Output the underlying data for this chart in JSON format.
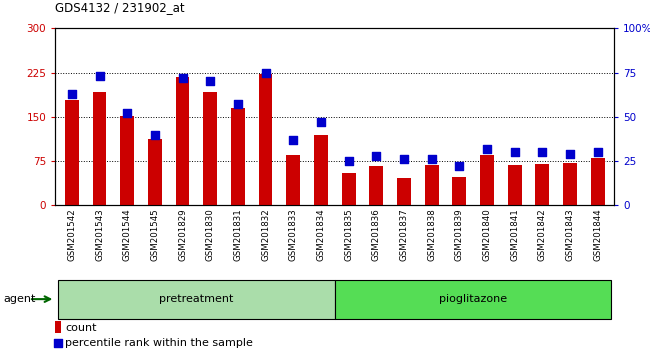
{
  "title": "GDS4132 / 231902_at",
  "categories": [
    "GSM201542",
    "GSM201543",
    "GSM201544",
    "GSM201545",
    "GSM201829",
    "GSM201830",
    "GSM201831",
    "GSM201832",
    "GSM201833",
    "GSM201834",
    "GSM201835",
    "GSM201836",
    "GSM201837",
    "GSM201838",
    "GSM201839",
    "GSM201840",
    "GSM201841",
    "GSM201842",
    "GSM201843",
    "GSM201844"
  ],
  "count_values": [
    178,
    192,
    152,
    112,
    218,
    192,
    165,
    222,
    85,
    120,
    55,
    67,
    47,
    68,
    48,
    85,
    68,
    70,
    72,
    80
  ],
  "percentile_values": [
    63,
    73,
    52,
    40,
    72,
    70,
    57,
    75,
    37,
    47,
    25,
    28,
    26,
    26,
    22,
    32,
    30,
    30,
    29,
    30
  ],
  "bar_color": "#cc0000",
  "dot_color": "#0000cc",
  "ylim_left": [
    0,
    300
  ],
  "ylim_right": [
    0,
    100
  ],
  "yticks_left": [
    0,
    75,
    150,
    225,
    300
  ],
  "yticks_right": [
    0,
    25,
    50,
    75,
    100
  ],
  "ytick_labels_right": [
    "0",
    "25",
    "50",
    "75",
    "100%"
  ],
  "grid_values": [
    75,
    150,
    225
  ],
  "pretreatment_indices": [
    0,
    9
  ],
  "pioglitazone_indices": [
    10,
    19
  ],
  "pretreatment_label": "pretreatment",
  "pioglitazone_label": "pioglitazone",
  "agent_label": "agent",
  "legend_count_label": "count",
  "legend_percentile_label": "percentile rank within the sample",
  "pretreatment_color": "#aaddaa",
  "pioglitazone_color": "#55dd55",
  "xticklabel_bg_color": "#c8c8c8",
  "bar_width": 0.5,
  "dot_size": 28
}
